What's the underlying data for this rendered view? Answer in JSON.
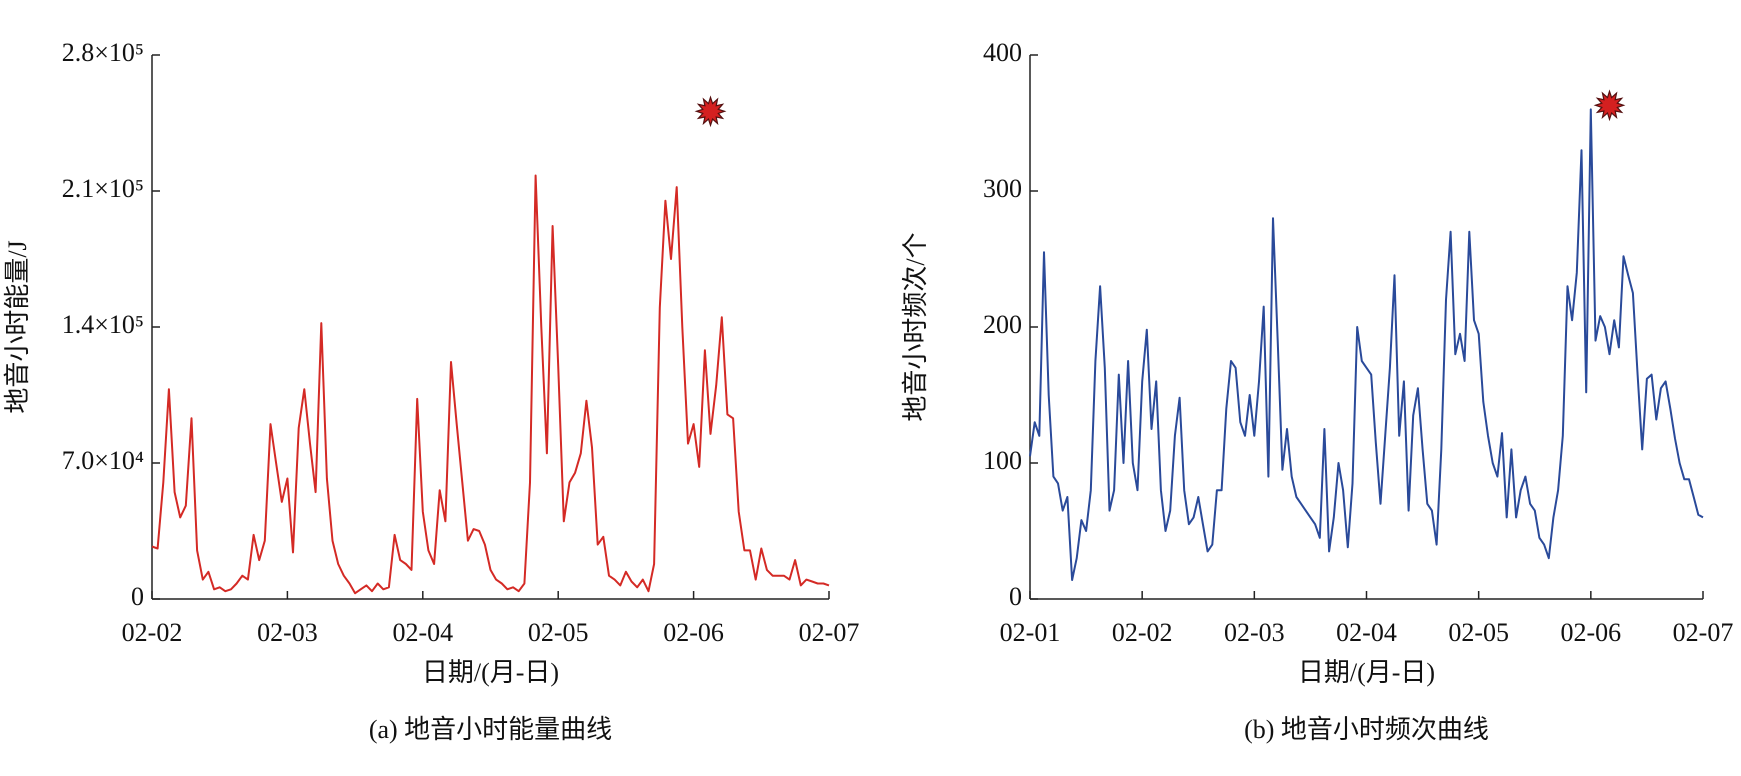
{
  "chart_data": [
    {
      "type": "line",
      "y_label": "地音小时能量/J",
      "x_label": "日期/(月-日)",
      "caption": "(a) 地音小时能量曲线",
      "color": "#d42a25",
      "categories": [
        "02-02",
        null,
        null,
        null,
        null,
        null,
        null,
        null,
        null,
        null,
        null,
        null,
        null,
        null,
        null,
        null,
        null,
        null,
        null,
        null,
        null,
        null,
        null,
        null,
        "02-03",
        null,
        null,
        null,
        null,
        null,
        null,
        null,
        null,
        null,
        null,
        null,
        null,
        null,
        null,
        null,
        null,
        null,
        null,
        null,
        null,
        null,
        null,
        null,
        "02-04",
        null,
        null,
        null,
        null,
        null,
        null,
        null,
        null,
        null,
        null,
        null,
        null,
        null,
        null,
        null,
        null,
        null,
        null,
        null,
        null,
        null,
        null,
        null,
        "02-05",
        null,
        null,
        null,
        null,
        null,
        null,
        null,
        null,
        null,
        null,
        null,
        null,
        null,
        null,
        null,
        null,
        null,
        null,
        null,
        null,
        null,
        null,
        null,
        "02-06",
        null,
        null,
        null,
        null,
        null,
        null,
        null,
        null,
        null,
        null,
        null,
        null,
        null,
        null,
        null,
        null,
        null,
        null,
        null,
        null,
        null,
        null,
        null,
        "02-07"
      ],
      "values": [
        27000,
        26000,
        60000,
        108000,
        55000,
        42000,
        48000,
        93000,
        25000,
        10000,
        14000,
        5000,
        6000,
        4000,
        5000,
        8000,
        12000,
        10000,
        33000,
        20000,
        30000,
        90000,
        70000,
        50000,
        62000,
        24000,
        88000,
        108000,
        80000,
        55000,
        142000,
        62000,
        30000,
        18000,
        12000,
        8000,
        3000,
        5000,
        7000,
        4000,
        8000,
        5000,
        6000,
        33000,
        20000,
        18000,
        15000,
        103000,
        45000,
        25000,
        18000,
        56000,
        40000,
        122000,
        90000,
        60000,
        30000,
        36000,
        35000,
        28000,
        15000,
        10000,
        8000,
        5000,
        6000,
        4000,
        8000,
        60000,
        218000,
        140000,
        75000,
        192000,
        120000,
        40000,
        60000,
        65000,
        75000,
        102000,
        78000,
        28000,
        32000,
        12000,
        10000,
        7000,
        14000,
        9000,
        6000,
        10000,
        4000,
        18000,
        150000,
        205000,
        175000,
        212000,
        140000,
        80000,
        90000,
        68000,
        128000,
        85000,
        110000,
        145000,
        95000,
        93000,
        45000,
        25000,
        25000,
        10000,
        26000,
        15000,
        12000,
        12000,
        12000,
        10000,
        20000,
        7000,
        10000,
        9000,
        8000,
        8000,
        7000
      ],
      "ylim": [
        0,
        280000
      ],
      "yticks": [
        0,
        {
          "value": 70000,
          "label": "7.0×10⁴"
        },
        {
          "value": 140000,
          "label": "1.4×10⁵"
        },
        {
          "value": 210000,
          "label": "2.1×10⁵"
        },
        {
          "value": 280000,
          "label": "2.8×10⁵"
        }
      ],
      "event": {
        "index": 99,
        "value": 251000
      }
    },
    {
      "type": "line",
      "y_label": "地音小时频次/个",
      "x_label": "日期/(月-日)",
      "caption": "(b) 地音小时频次曲线",
      "color": "#2a4a9a",
      "categories": [
        "02-01",
        null,
        null,
        null,
        null,
        null,
        null,
        null,
        null,
        null,
        null,
        null,
        null,
        null,
        null,
        null,
        null,
        null,
        null,
        null,
        null,
        null,
        null,
        null,
        "02-02",
        null,
        null,
        null,
        null,
        null,
        null,
        null,
        null,
        null,
        null,
        null,
        null,
        null,
        null,
        null,
        null,
        null,
        null,
        null,
        null,
        null,
        null,
        null,
        "02-03",
        null,
        null,
        null,
        null,
        null,
        null,
        null,
        null,
        null,
        null,
        null,
        null,
        null,
        null,
        null,
        null,
        null,
        null,
        null,
        null,
        null,
        null,
        null,
        "02-04",
        null,
        null,
        null,
        null,
        null,
        null,
        null,
        null,
        null,
        null,
        null,
        null,
        null,
        null,
        null,
        null,
        null,
        null,
        null,
        null,
        null,
        null,
        null,
        "02-05",
        null,
        null,
        null,
        null,
        null,
        null,
        null,
        null,
        null,
        null,
        null,
        null,
        null,
        null,
        null,
        null,
        null,
        null,
        null,
        null,
        null,
        null,
        null,
        "02-06",
        null,
        null,
        null,
        null,
        null,
        null,
        null,
        null,
        null,
        null,
        null,
        null,
        null,
        null,
        null,
        null,
        null,
        null,
        null,
        null,
        null,
        null,
        null,
        "02-07"
      ],
      "values": [
        105,
        130,
        120,
        255,
        150,
        90,
        85,
        65,
        75,
        14,
        30,
        58,
        50,
        80,
        175,
        230,
        170,
        65,
        80,
        165,
        100,
        175,
        100,
        80,
        160,
        198,
        125,
        160,
        80,
        50,
        65,
        120,
        148,
        80,
        55,
        60,
        75,
        55,
        35,
        40,
        80,
        80,
        140,
        175,
        170,
        130,
        120,
        150,
        120,
        160,
        215,
        90,
        280,
        190,
        95,
        125,
        90,
        75,
        70,
        65,
        60,
        55,
        45,
        125,
        35,
        60,
        100,
        80,
        38,
        85,
        200,
        175,
        170,
        165,
        115,
        70,
        120,
        170,
        238,
        120,
        160,
        65,
        135,
        155,
        110,
        70,
        65,
        40,
        110,
        220,
        270,
        180,
        195,
        175,
        270,
        205,
        195,
        145,
        120,
        100,
        90,
        122,
        60,
        110,
        60,
        80,
        90,
        70,
        65,
        45,
        40,
        30,
        60,
        80,
        120,
        230,
        205,
        240,
        330,
        152,
        360,
        190,
        208,
        200,
        180,
        205,
        185,
        252,
        238,
        225,
        165,
        110,
        162,
        165,
        132,
        155,
        160,
        140,
        118,
        100,
        88,
        88,
        75,
        62,
        60
      ],
      "ylim": [
        0,
        400
      ],
      "yticks": [
        0,
        100,
        200,
        300,
        400
      ],
      "event": {
        "index": 124,
        "value": 363
      }
    }
  ]
}
